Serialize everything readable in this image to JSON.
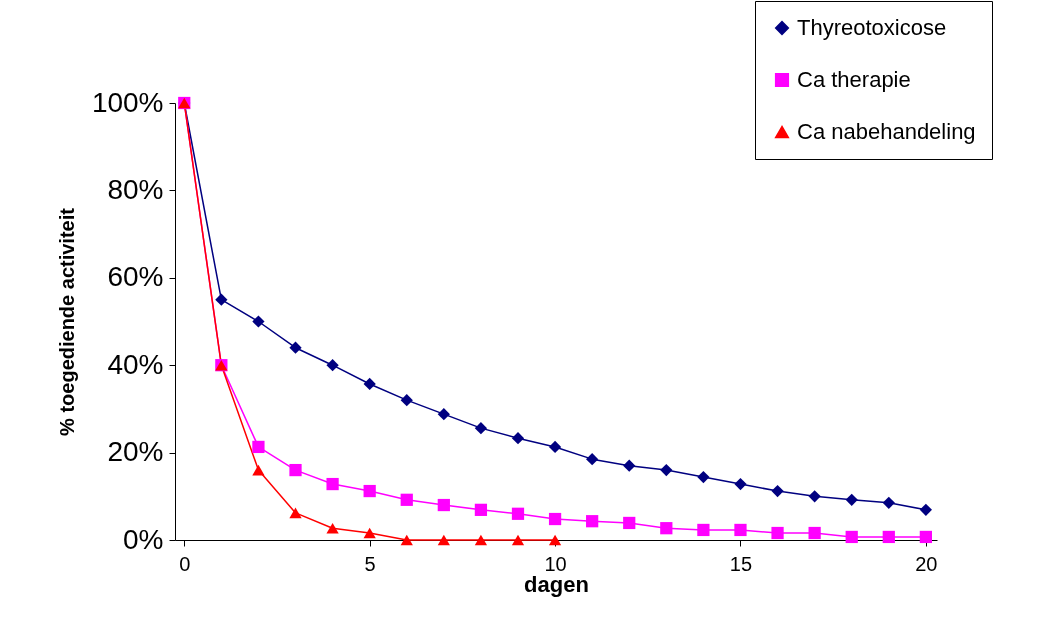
{
  "chart_data": {
    "type": "line",
    "xlabel": "dagen",
    "ylabel": "% toegediende activiteit",
    "x": [
      0,
      1,
      2,
      3,
      4,
      5,
      6,
      7,
      8,
      9,
      10,
      11,
      12,
      13,
      14,
      15,
      16,
      17,
      18,
      19,
      20
    ],
    "xlim": [
      -0.25,
      20.3
    ],
    "xticks": [
      0,
      5,
      10,
      15,
      20
    ],
    "ylim": [
      0,
      100
    ],
    "yticks": [
      {
        "value": 0,
        "label": "0%"
      },
      {
        "value": 20,
        "label": "20%"
      },
      {
        "value": 40,
        "label": "40%"
      },
      {
        "value": 60,
        "label": "60%"
      },
      {
        "value": 80,
        "label": "80%"
      },
      {
        "value": 100,
        "label": "100%"
      }
    ],
    "grid": false,
    "legend": "top right",
    "series": [
      {
        "name": "Thyreotoxicose",
        "color": "#000080",
        "marker": "diamond",
        "values": [
          100,
          55,
          50,
          44,
          40,
          35.7,
          32,
          28.8,
          25.6,
          23.3,
          21.3,
          18.5,
          17,
          16,
          14.4,
          12.8,
          11.2,
          10,
          9.2,
          8.5,
          6.9
        ]
      },
      {
        "name": "Ca therapie",
        "color": "#ff00ff",
        "marker": "square",
        "values": [
          100,
          40,
          21.3,
          16,
          12.8,
          11.2,
          9.2,
          8,
          6.9,
          6,
          4.8,
          4.3,
          3.9,
          2.7,
          2.3,
          2.3,
          1.6,
          1.6,
          0.7,
          0.7,
          0.7
        ]
      },
      {
        "name": "Ca nabehandeling",
        "color": "#ff0000",
        "marker": "triangle",
        "values": [
          100,
          40,
          16,
          6.2,
          2.7,
          1.6,
          0,
          0,
          0,
          0,
          0,
          null,
          null,
          null,
          null,
          null,
          null,
          null,
          null,
          null,
          null
        ]
      }
    ]
  }
}
